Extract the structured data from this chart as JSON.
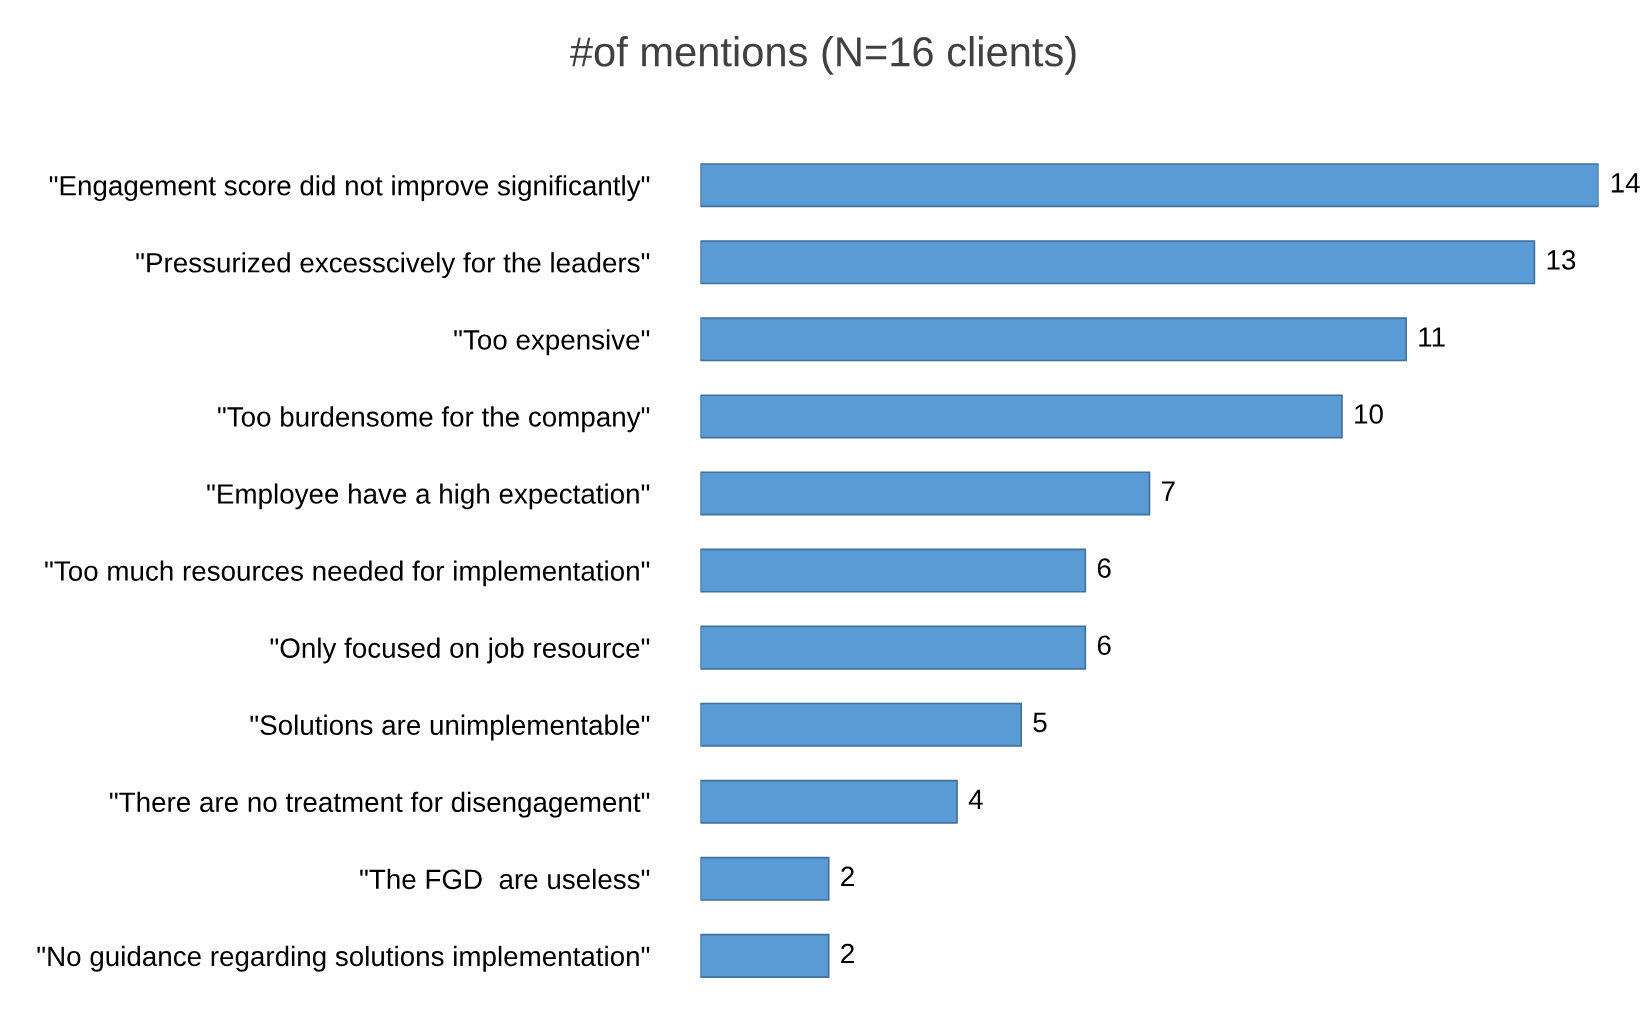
{
  "chart_data": {
    "type": "bar",
    "orientation": "horizontal",
    "title": "#of mentions (N=16 clients)",
    "categories": [
      "\"Engagement score did not improve significantly\"",
      "\"Pressurized excesscively for the leaders\"",
      "\"Too expensive\"",
      "\"Too burdensome for the company\"",
      "\"Employee have a high expectation\"",
      "\"Too much resources needed for implementation\"",
      "\"Only focused on job resource\"",
      "\"Solutions are unimplementable\"",
      "\"There are no treatment for disengagement\"",
      "\"The FGD  are useless\"",
      "\"No guidance regarding solutions implementation\""
    ],
    "values": [
      14,
      13,
      11,
      10,
      7,
      6,
      6,
      5,
      4,
      2,
      2
    ],
    "color": "#5b9bd5",
    "data_labels": true,
    "grid": false,
    "legend": false
  }
}
